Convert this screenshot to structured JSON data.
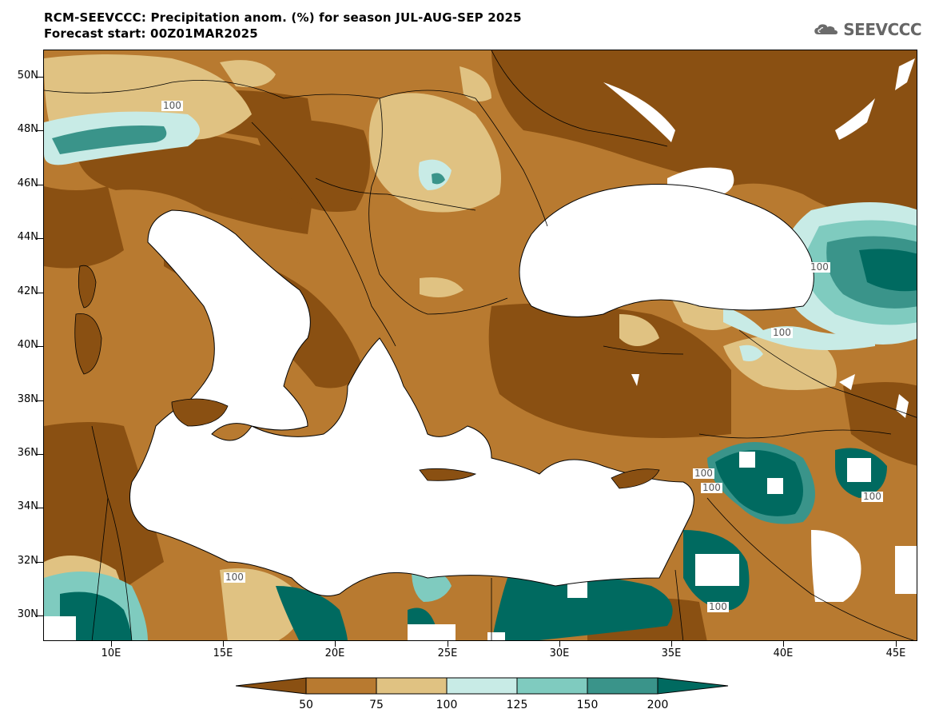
{
  "header": {
    "title": "RCM-SEEVCCC: Precipitation anom. (%) for season JUL-AUG-SEP 2025",
    "subtitle": "Forecast start: 00Z01MAR2025"
  },
  "logo": {
    "text": "SEEVCCC",
    "icon": "cloud-icon"
  },
  "map": {
    "lat_labels": [
      "50N",
      "48N",
      "46N",
      "44N",
      "42N",
      "40N",
      "38N",
      "36N",
      "34N",
      "32N",
      "30N"
    ],
    "lon_labels": [
      "10E",
      "15E",
      "20E",
      "25E",
      "30E",
      "35E",
      "40E",
      "45E"
    ],
    "contour_labels": [
      "100",
      "100",
      "100",
      "100",
      "100",
      "100",
      "100",
      "100"
    ]
  },
  "colorbar": {
    "labels": [
      "50",
      "75",
      "100",
      "125",
      "150",
      "200"
    ],
    "colors": [
      "#8a5012",
      "#b87a30",
      "#e0c282",
      "#c8ebe6",
      "#7fcbbf",
      "#3a948a",
      "#006a60"
    ]
  }
}
